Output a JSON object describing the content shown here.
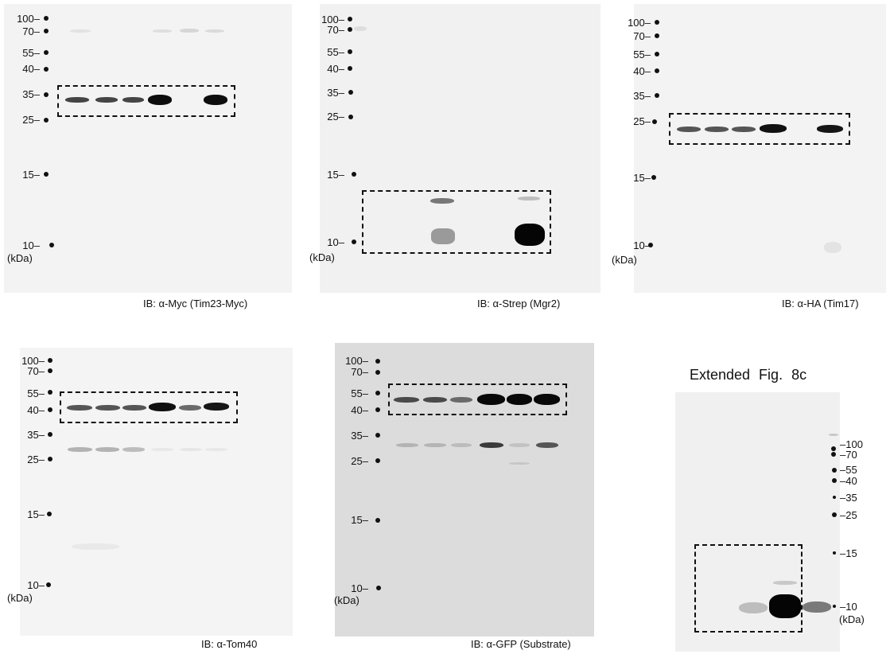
{
  "panels": [
    {
      "caption": "IB: α-Myc (Tim23-Myc)",
      "markers": [
        "100",
        "70",
        "55",
        "40",
        "35",
        "25",
        "15",
        "10"
      ],
      "unit": "(kDa)"
    },
    {
      "caption": "IB: α-Strep (Mgr2)",
      "markers": [
        "100",
        "70",
        "55",
        "40",
        "35",
        "25",
        "15",
        "10"
      ],
      "unit": "(kDa)"
    },
    {
      "caption": "IB: α-HA (Tim17)",
      "markers": [
        "100",
        "70",
        "55",
        "40",
        "35",
        "25",
        "15",
        "10"
      ],
      "unit": "(kDa)"
    },
    {
      "caption": "IB: α-Tom40",
      "markers": [
        "100",
        "70",
        "55",
        "40",
        "35",
        "25",
        "15",
        "10"
      ],
      "unit": "(kDa)"
    },
    {
      "caption": "IB: α-GFP (Substrate)",
      "markers": [
        "100",
        "70",
        "55",
        "40",
        "35",
        "25",
        "15",
        "10"
      ],
      "unit": "(kDa)"
    },
    {
      "title": "Extended  Fig. 8c",
      "markers": [
        "100",
        "70",
        "55",
        "40",
        "35",
        "25",
        "15",
        "10"
      ],
      "unit": "(kDa)"
    }
  ],
  "colors": {
    "ink": "#111111",
    "blot_bg_light": "#f2f2f2",
    "blot_bg_gfp": "#dcdcdc"
  }
}
